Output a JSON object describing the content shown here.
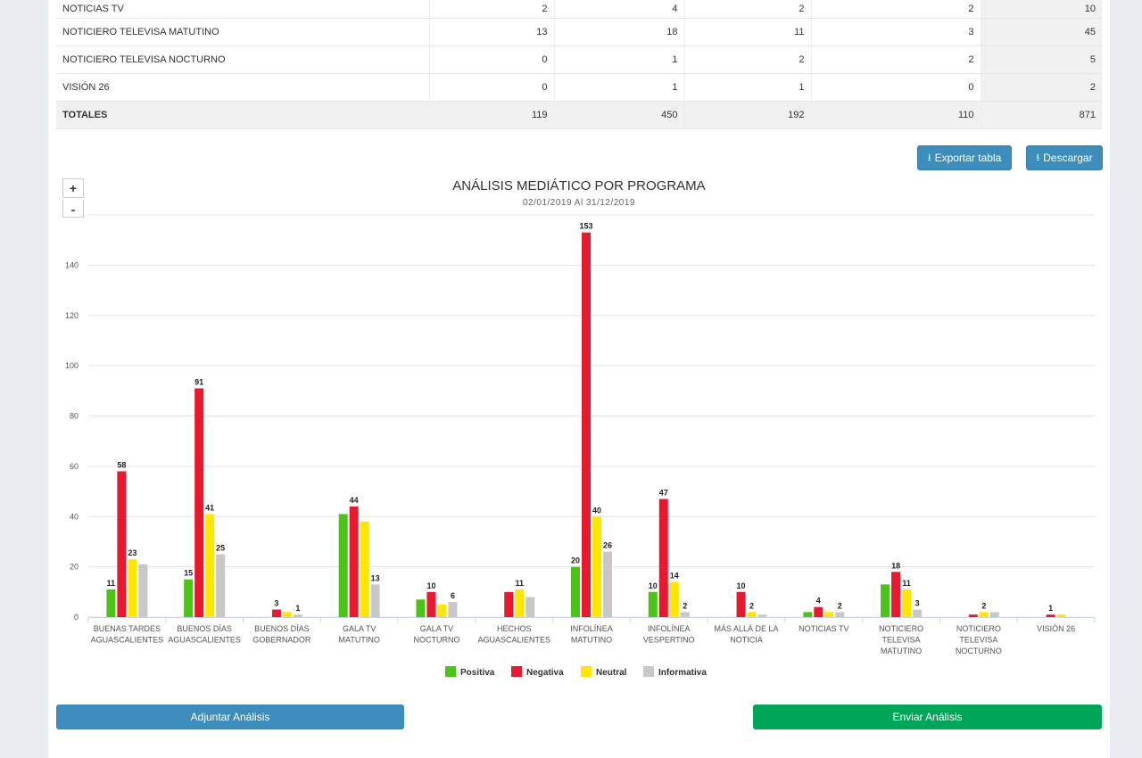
{
  "table": {
    "rows": [
      {
        "label": "NOTICIAS TV",
        "values": [
          "2",
          "4",
          "2",
          "2"
        ],
        "total": "10"
      },
      {
        "label": "NOTICIERO TELEVISA MATUTINO",
        "values": [
          "13",
          "18",
          "11",
          "3"
        ],
        "total": "45"
      },
      {
        "label": "NOTICIERO TELEVISA NOCTURNO",
        "values": [
          "0",
          "1",
          "2",
          "2"
        ],
        "total": "5"
      },
      {
        "label": "VISIÓN 26",
        "values": [
          "0",
          "1",
          "1",
          "0"
        ],
        "total": "2"
      }
    ],
    "totals": {
      "label": "TOTALES",
      "values": [
        "119",
        "450",
        "192",
        "110"
      ],
      "total": "871"
    }
  },
  "toolbar": {
    "export_label": "Exportar tabla",
    "download_label": "Descargar",
    "zoom_in": "+",
    "zoom_out": "-"
  },
  "chart_data": {
    "type": "bar",
    "title": "ANÁLISIS MEDIÁTICO POR PROGRAMA",
    "subtitle": "02/01/2019 Al 31/12/2019",
    "categories": [
      [
        "BUENAS TARDES",
        "AGUASCALIENTES"
      ],
      [
        "BUENOS DÍAS",
        "AGUASCALIENTES"
      ],
      [
        "BUENOS DÍAS",
        "GOBERNADOR"
      ],
      [
        "GALA TV",
        "MATUTINO"
      ],
      [
        "GALA TV",
        "NOCTURNO"
      ],
      [
        "HECHOS",
        "AGUASCALIENTES"
      ],
      [
        "INFOLÍNEA",
        "MATUTINO"
      ],
      [
        "INFOLÍNEA",
        "VESPERTINO"
      ],
      [
        "MÁS ALLÁ DE LA",
        "NOTICIA"
      ],
      [
        "NOTICIAS TV"
      ],
      [
        "NOTICIERO",
        "TELEVISA",
        "MATUTINO"
      ],
      [
        "NOTICIERO",
        "TELEVISA",
        "NOCTURNO"
      ],
      [
        "VISIÓN 26"
      ]
    ],
    "series": [
      {
        "name": "Positiva",
        "color": "#4cc417",
        "values": [
          11,
          15,
          0,
          41,
          7,
          0,
          20,
          10,
          0,
          2,
          13,
          0,
          0
        ],
        "labels": [
          "11",
          "15",
          "",
          "",
          "",
          "",
          "20",
          "10",
          "",
          "",
          "",
          "",
          ""
        ]
      },
      {
        "name": "Negativa",
        "color": "#e8182f",
        "values": [
          58,
          91,
          3,
          44,
          10,
          10,
          153,
          47,
          10,
          4,
          18,
          1,
          1
        ],
        "labels": [
          "58",
          "91",
          "3",
          "44",
          "10",
          "",
          "153",
          "47",
          "10",
          "4",
          "18",
          "",
          "1"
        ]
      },
      {
        "name": "Neutral",
        "color": "#ffe500",
        "values": [
          23,
          41,
          2,
          38,
          5,
          11,
          40,
          14,
          2,
          2,
          11,
          2,
          1
        ],
        "labels": [
          "23",
          "41",
          "",
          "",
          "",
          "11",
          "40",
          "14",
          "2",
          "",
          "11",
          "2",
          ""
        ]
      },
      {
        "name": "Informativa",
        "color": "#c8c8c8",
        "values": [
          21,
          25,
          1,
          13,
          6,
          8,
          26,
          2,
          1,
          2,
          3,
          2,
          0
        ],
        "labels": [
          "",
          "25",
          "1",
          "13",
          "6",
          "",
          "26",
          "2",
          "",
          "2",
          "3",
          "",
          ""
        ]
      }
    ],
    "yticks": [
      0,
      20,
      40,
      60,
      80,
      100,
      120,
      140,
      160
    ],
    "ylim": [
      0,
      160
    ],
    "grid": true,
    "legend": "bottom-center"
  },
  "actions": {
    "attach_label": "Adjuntar Análisis",
    "send_label": "Enviar Análisis",
    "attach_color": "#3c8dbc",
    "send_color": "#00a65a"
  }
}
